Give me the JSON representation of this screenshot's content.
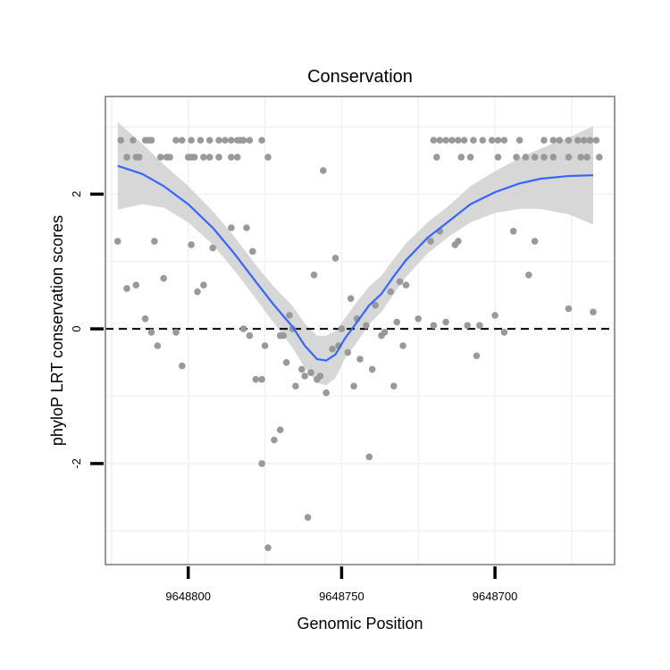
{
  "chart_data": {
    "type": "scatter",
    "title": "Conservation",
    "xlabel": "Genomic Position",
    "ylabel": "phyloP LRT conservation scores",
    "x_reversed": true,
    "xlim": [
      9648827,
      9648661
    ],
    "ylim": [
      -3.5,
      3.45
    ],
    "x_ticks": [
      9648800,
      9648750,
      9648700
    ],
    "x_tick_labels": [
      "9648800",
      "9648750",
      "9648700"
    ],
    "y_ticks": [
      -2,
      0,
      2
    ],
    "y_tick_labels": [
      "-2",
      "0",
      "2"
    ],
    "reference_line": {
      "y": 0,
      "style": "dashed"
    },
    "colors": {
      "points": "#999999",
      "smooth_line": "#3366FF",
      "ribbon": "#D0D0D0",
      "panel_border": "#7F7F7F",
      "grid": "#F2F2F2"
    },
    "series": [
      {
        "name": "conservation scores",
        "points": [
          [
            9648822,
            2.8
          ],
          [
            9648818,
            2.8
          ],
          [
            9648814,
            2.8
          ],
          [
            9648813,
            2.8
          ],
          [
            9648812,
            2.8
          ],
          [
            9648804,
            2.8
          ],
          [
            9648802,
            2.8
          ],
          [
            9648799,
            2.8
          ],
          [
            9648796,
            2.8
          ],
          [
            9648793,
            2.8
          ],
          [
            9648790,
            2.8
          ],
          [
            9648788,
            2.8
          ],
          [
            9648786,
            2.8
          ],
          [
            9648784,
            2.8
          ],
          [
            9648783,
            2.8
          ],
          [
            9648782,
            2.8
          ],
          [
            9648780,
            2.8
          ],
          [
            9648776,
            2.8
          ],
          [
            9648820,
            2.55
          ],
          [
            9648817,
            2.55
          ],
          [
            9648816,
            2.55
          ],
          [
            9648809,
            2.55
          ],
          [
            9648807,
            2.55
          ],
          [
            9648806,
            2.55
          ],
          [
            9648800,
            2.55
          ],
          [
            9648799,
            2.55
          ],
          [
            9648798,
            2.55
          ],
          [
            9648795,
            2.55
          ],
          [
            9648793,
            2.55
          ],
          [
            9648790,
            2.55
          ],
          [
            9648786,
            2.55
          ],
          [
            9648784,
            2.55
          ],
          [
            9648774,
            2.55
          ],
          [
            9648720,
            2.8
          ],
          [
            9648718,
            2.8
          ],
          [
            9648716,
            2.8
          ],
          [
            9648714,
            2.8
          ],
          [
            9648712,
            2.8
          ],
          [
            9648710,
            2.8
          ],
          [
            9648707,
            2.8
          ],
          [
            9648704,
            2.8
          ],
          [
            9648701,
            2.8
          ],
          [
            9648699,
            2.8
          ],
          [
            9648697,
            2.8
          ],
          [
            9648692,
            2.8
          ],
          [
            9648684,
            2.8
          ],
          [
            9648681,
            2.8
          ],
          [
            9648679,
            2.8
          ],
          [
            9648676,
            2.8
          ],
          [
            9648673,
            2.8
          ],
          [
            9648671,
            2.8
          ],
          [
            9648669,
            2.8
          ],
          [
            9648667,
            2.8
          ],
          [
            9648719,
            2.55
          ],
          [
            9648711,
            2.55
          ],
          [
            9648708,
            2.55
          ],
          [
            9648699,
            2.55
          ],
          [
            9648693,
            2.55
          ],
          [
            9648690,
            2.55
          ],
          [
            9648687,
            2.55
          ],
          [
            9648684,
            2.55
          ],
          [
            9648681,
            2.55
          ],
          [
            9648676,
            2.55
          ],
          [
            9648672,
            2.55
          ],
          [
            9648670,
            2.55
          ],
          [
            9648666,
            2.55
          ],
          [
            9648823,
            1.3
          ],
          [
            9648820,
            0.6
          ],
          [
            9648817,
            0.65
          ],
          [
            9648814,
            0.15
          ],
          [
            9648812,
            -0.05
          ],
          [
            9648811,
            1.3
          ],
          [
            9648810,
            -0.25
          ],
          [
            9648808,
            0.75
          ],
          [
            9648804,
            -0.05
          ],
          [
            9648802,
            -0.55
          ],
          [
            9648799,
            1.25
          ],
          [
            9648797,
            0.55
          ],
          [
            9648795,
            0.65
          ],
          [
            9648792,
            1.2
          ],
          [
            9648786,
            1.5
          ],
          [
            9648781,
            1.5
          ],
          [
            9648779,
            1.15
          ],
          [
            9648782,
            0.0
          ],
          [
            9648780,
            -0.1
          ],
          [
            9648778,
            -0.75
          ],
          [
            9648776,
            -0.75
          ],
          [
            9648775,
            -0.25
          ],
          [
            9648776,
            -2.0
          ],
          [
            9648772,
            -1.65
          ],
          [
            9648770,
            -1.5
          ],
          [
            9648774,
            -3.25
          ],
          [
            9648770,
            -0.1
          ],
          [
            9648769,
            -0.1
          ],
          [
            9648768,
            -0.5
          ],
          [
            9648767,
            0.2
          ],
          [
            9648766,
            0.0
          ],
          [
            9648765,
            -0.85
          ],
          [
            9648763,
            -0.6
          ],
          [
            9648762,
            -0.7
          ],
          [
            9648761,
            -2.8
          ],
          [
            9648760,
            -0.65
          ],
          [
            9648759,
            0.8
          ],
          [
            9648758,
            -0.75
          ],
          [
            9648757,
            -0.7
          ],
          [
            9648756,
            2.35
          ],
          [
            9648755,
            -0.95
          ],
          [
            9648753,
            -0.3
          ],
          [
            9648752,
            1.05
          ],
          [
            9648751,
            -0.25
          ],
          [
            9648750,
            0.0
          ],
          [
            9648748,
            -0.35
          ],
          [
            9648747,
            0.45
          ],
          [
            9648746,
            -0.85
          ],
          [
            9648745,
            0.15
          ],
          [
            9648744,
            -0.45
          ],
          [
            9648742,
            0.05
          ],
          [
            9648741,
            -1.9
          ],
          [
            9648740,
            -0.6
          ],
          [
            9648739,
            0.35
          ],
          [
            9648737,
            -0.1
          ],
          [
            9648736,
            -0.05
          ],
          [
            9648734,
            0.55
          ],
          [
            9648733,
            -0.85
          ],
          [
            9648732,
            0.1
          ],
          [
            9648731,
            0.7
          ],
          [
            9648730,
            -0.25
          ],
          [
            9648729,
            0.65
          ],
          [
            9648725,
            0.15
          ],
          [
            9648721,
            1.3
          ],
          [
            9648720,
            0.05
          ],
          [
            9648718,
            1.45
          ],
          [
            9648716,
            0.1
          ],
          [
            9648713,
            1.25
          ],
          [
            9648712,
            1.3
          ],
          [
            9648709,
            0.05
          ],
          [
            9648706,
            -0.4
          ],
          [
            9648705,
            0.05
          ],
          [
            9648700,
            0.2
          ],
          [
            9648697,
            -0.05
          ],
          [
            9648694,
            1.45
          ],
          [
            9648689,
            0.8
          ],
          [
            9648687,
            1.3
          ],
          [
            9648676,
            0.3
          ],
          [
            9648668,
            0.25
          ]
        ]
      }
    ],
    "smooth": {
      "x": [
        9648823,
        9648815,
        9648808,
        9648800,
        9648792,
        9648785,
        9648778,
        9648772,
        9648766,
        9648762,
        9648758,
        9648755,
        9648752,
        9648749,
        9648745,
        9648741,
        9648737,
        9648733,
        9648729,
        9648722,
        9648715,
        9648708,
        9648700,
        9648692,
        9648685,
        9648676,
        9648668
      ],
      "y": [
        2.42,
        2.3,
        2.12,
        1.85,
        1.5,
        1.12,
        0.7,
        0.35,
        0.03,
        -0.25,
        -0.45,
        -0.47,
        -0.38,
        -0.15,
        0.1,
        0.35,
        0.52,
        0.78,
        1.02,
        1.35,
        1.6,
        1.85,
        2.03,
        2.16,
        2.23,
        2.27,
        2.28
      ],
      "lower": [
        1.77,
        1.85,
        1.8,
        1.58,
        1.25,
        0.87,
        0.45,
        0.08,
        -0.28,
        -0.58,
        -0.8,
        -0.84,
        -0.73,
        -0.45,
        -0.2,
        0.07,
        0.25,
        0.52,
        0.77,
        1.12,
        1.37,
        1.58,
        1.72,
        1.78,
        1.78,
        1.7,
        1.55
      ],
      "upper": [
        3.07,
        2.75,
        2.44,
        2.12,
        1.75,
        1.37,
        0.95,
        0.62,
        0.34,
        0.08,
        -0.1,
        -0.1,
        -0.03,
        0.15,
        0.4,
        0.63,
        0.79,
        1.04,
        1.27,
        1.58,
        1.83,
        2.12,
        2.34,
        2.54,
        2.68,
        2.84,
        3.01
      ]
    }
  }
}
